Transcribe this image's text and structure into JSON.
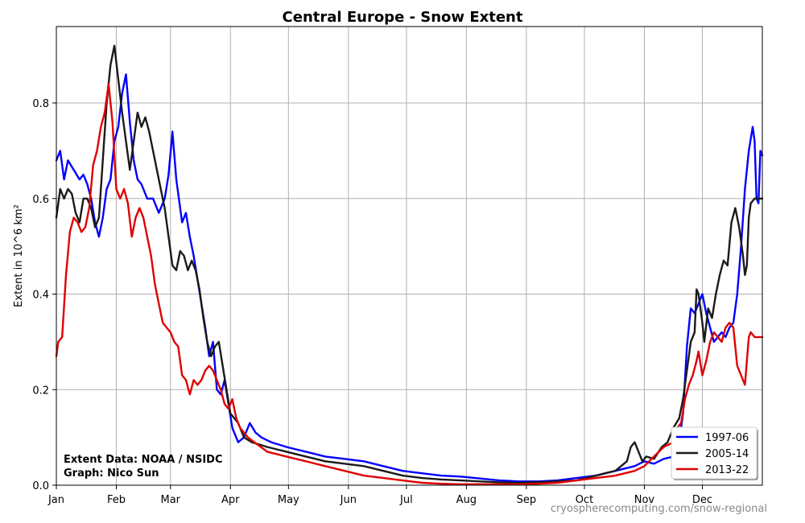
{
  "chart_data": {
    "type": "line",
    "title": "Central Europe - Snow Extent",
    "ylabel": "Extent in 10^6 km²",
    "xlabel": "",
    "x_tick_labels": [
      "Jan",
      "Feb",
      "Mar",
      "Apr",
      "May",
      "Jun",
      "Jul",
      "Aug",
      "Sep",
      "Oct",
      "Nov",
      "Dec"
    ],
    "x_unit": "day of year",
    "x_month_start_days": [
      1,
      32,
      60,
      91,
      121,
      152,
      182,
      213,
      244,
      274,
      305,
      335
    ],
    "xlim": [
      1,
      366
    ],
    "ylim": [
      0,
      0.96
    ],
    "y_ticks": [
      0.0,
      0.2,
      0.4,
      0.6,
      0.8
    ],
    "grid": true,
    "legend_position": "bottom-right",
    "annotation_lines": [
      "Extent Data: NOAA / NSIDC",
      "Graph: Nico Sun"
    ],
    "credit": "cryospherecomputing.com/snow-regional",
    "series": [
      {
        "name": "1997-06",
        "color": "#0000ff",
        "points": [
          [
            1,
            0.68
          ],
          [
            3,
            0.7
          ],
          [
            5,
            0.64
          ],
          [
            7,
            0.68
          ],
          [
            10,
            0.66
          ],
          [
            13,
            0.64
          ],
          [
            15,
            0.65
          ],
          [
            17,
            0.63
          ],
          [
            19,
            0.6
          ],
          [
            21,
            0.55
          ],
          [
            23,
            0.52
          ],
          [
            25,
            0.56
          ],
          [
            27,
            0.62
          ],
          [
            29,
            0.64
          ],
          [
            31,
            0.72
          ],
          [
            33,
            0.75
          ],
          [
            35,
            0.82
          ],
          [
            37,
            0.86
          ],
          [
            39,
            0.76
          ],
          [
            41,
            0.68
          ],
          [
            43,
            0.64
          ],
          [
            45,
            0.63
          ],
          [
            48,
            0.6
          ],
          [
            51,
            0.6
          ],
          [
            54,
            0.57
          ],
          [
            57,
            0.6
          ],
          [
            59,
            0.65
          ],
          [
            61,
            0.74
          ],
          [
            63,
            0.64
          ],
          [
            66,
            0.55
          ],
          [
            68,
            0.57
          ],
          [
            70,
            0.52
          ],
          [
            72,
            0.48
          ],
          [
            74,
            0.43
          ],
          [
            76,
            0.38
          ],
          [
            78,
            0.33
          ],
          [
            80,
            0.27
          ],
          [
            82,
            0.3
          ],
          [
            84,
            0.2
          ],
          [
            86,
            0.19
          ],
          [
            88,
            0.22
          ],
          [
            90,
            0.17
          ],
          [
            92,
            0.12
          ],
          [
            95,
            0.09
          ],
          [
            98,
            0.1
          ],
          [
            101,
            0.13
          ],
          [
            104,
            0.11
          ],
          [
            107,
            0.1
          ],
          [
            112,
            0.09
          ],
          [
            116,
            0.085
          ],
          [
            120,
            0.08
          ],
          [
            125,
            0.075
          ],
          [
            130,
            0.07
          ],
          [
            140,
            0.06
          ],
          [
            150,
            0.055
          ],
          [
            160,
            0.05
          ],
          [
            170,
            0.04
          ],
          [
            180,
            0.03
          ],
          [
            190,
            0.025
          ],
          [
            200,
            0.02
          ],
          [
            210,
            0.018
          ],
          [
            220,
            0.014
          ],
          [
            230,
            0.01
          ],
          [
            240,
            0.008
          ],
          [
            250,
            0.008
          ],
          [
            260,
            0.01
          ],
          [
            270,
            0.015
          ],
          [
            280,
            0.02
          ],
          [
            290,
            0.03
          ],
          [
            300,
            0.04
          ],
          [
            305,
            0.05
          ],
          [
            310,
            0.045
          ],
          [
            315,
            0.055
          ],
          [
            320,
            0.06
          ],
          [
            323,
            0.09
          ],
          [
            325,
            0.15
          ],
          [
            327,
            0.29
          ],
          [
            329,
            0.37
          ],
          [
            331,
            0.36
          ],
          [
            333,
            0.38
          ],
          [
            335,
            0.4
          ],
          [
            337,
            0.36
          ],
          [
            339,
            0.33
          ],
          [
            341,
            0.3
          ],
          [
            343,
            0.31
          ],
          [
            345,
            0.32
          ],
          [
            347,
            0.31
          ],
          [
            349,
            0.33
          ],
          [
            351,
            0.34
          ],
          [
            353,
            0.4
          ],
          [
            355,
            0.5
          ],
          [
            357,
            0.62
          ],
          [
            359,
            0.7
          ],
          [
            361,
            0.75
          ],
          [
            362,
            0.72
          ],
          [
            363,
            0.6
          ],
          [
            364,
            0.59
          ],
          [
            365,
            0.7
          ],
          [
            366,
            0.69
          ]
        ]
      },
      {
        "name": "2005-14",
        "color": "#1a1a1a",
        "points": [
          [
            1,
            0.56
          ],
          [
            3,
            0.62
          ],
          [
            5,
            0.6
          ],
          [
            7,
            0.62
          ],
          [
            9,
            0.61
          ],
          [
            11,
            0.57
          ],
          [
            13,
            0.55
          ],
          [
            15,
            0.6
          ],
          [
            17,
            0.6
          ],
          [
            19,
            0.58
          ],
          [
            21,
            0.54
          ],
          [
            23,
            0.56
          ],
          [
            25,
            0.68
          ],
          [
            27,
            0.8
          ],
          [
            29,
            0.88
          ],
          [
            31,
            0.92
          ],
          [
            33,
            0.85
          ],
          [
            35,
            0.78
          ],
          [
            37,
            0.72
          ],
          [
            39,
            0.66
          ],
          [
            41,
            0.72
          ],
          [
            43,
            0.78
          ],
          [
            45,
            0.75
          ],
          [
            47,
            0.77
          ],
          [
            49,
            0.74
          ],
          [
            51,
            0.7
          ],
          [
            53,
            0.66
          ],
          [
            55,
            0.62
          ],
          [
            57,
            0.58
          ],
          [
            59,
            0.52
          ],
          [
            61,
            0.46
          ],
          [
            63,
            0.45
          ],
          [
            65,
            0.49
          ],
          [
            67,
            0.48
          ],
          [
            69,
            0.45
          ],
          [
            71,
            0.47
          ],
          [
            73,
            0.45
          ],
          [
            75,
            0.41
          ],
          [
            77,
            0.35
          ],
          [
            79,
            0.3
          ],
          [
            81,
            0.27
          ],
          [
            83,
            0.29
          ],
          [
            85,
            0.3
          ],
          [
            87,
            0.25
          ],
          [
            89,
            0.2
          ],
          [
            91,
            0.15
          ],
          [
            93,
            0.14
          ],
          [
            95,
            0.13
          ],
          [
            98,
            0.1
          ],
          [
            102,
            0.09
          ],
          [
            106,
            0.085
          ],
          [
            110,
            0.08
          ],
          [
            115,
            0.075
          ],
          [
            120,
            0.07
          ],
          [
            130,
            0.06
          ],
          [
            140,
            0.05
          ],
          [
            150,
            0.045
          ],
          [
            160,
            0.04
          ],
          [
            170,
            0.03
          ],
          [
            180,
            0.02
          ],
          [
            190,
            0.015
          ],
          [
            200,
            0.012
          ],
          [
            210,
            0.01
          ],
          [
            220,
            0.008
          ],
          [
            230,
            0.006
          ],
          [
            240,
            0.005
          ],
          [
            250,
            0.006
          ],
          [
            260,
            0.008
          ],
          [
            270,
            0.01
          ],
          [
            280,
            0.02
          ],
          [
            290,
            0.03
          ],
          [
            296,
            0.05
          ],
          [
            298,
            0.08
          ],
          [
            300,
            0.09
          ],
          [
            302,
            0.07
          ],
          [
            304,
            0.05
          ],
          [
            306,
            0.06
          ],
          [
            310,
            0.055
          ],
          [
            314,
            0.08
          ],
          [
            317,
            0.09
          ],
          [
            320,
            0.12
          ],
          [
            323,
            0.14
          ],
          [
            325,
            0.18
          ],
          [
            327,
            0.24
          ],
          [
            329,
            0.3
          ],
          [
            331,
            0.32
          ],
          [
            332,
            0.41
          ],
          [
            333,
            0.4
          ],
          [
            335,
            0.34
          ],
          [
            336,
            0.3
          ],
          [
            338,
            0.37
          ],
          [
            340,
            0.35
          ],
          [
            342,
            0.4
          ],
          [
            344,
            0.44
          ],
          [
            346,
            0.47
          ],
          [
            348,
            0.46
          ],
          [
            350,
            0.55
          ],
          [
            352,
            0.58
          ],
          [
            354,
            0.54
          ],
          [
            356,
            0.48
          ],
          [
            357,
            0.44
          ],
          [
            358,
            0.46
          ],
          [
            359,
            0.56
          ],
          [
            360,
            0.59
          ],
          [
            362,
            0.6
          ],
          [
            366,
            0.6
          ]
        ]
      },
      {
        "name": "2013-22",
        "color": "#e00000",
        "points": [
          [
            1,
            0.27
          ],
          [
            2,
            0.3
          ],
          [
            4,
            0.31
          ],
          [
            6,
            0.44
          ],
          [
            8,
            0.53
          ],
          [
            10,
            0.56
          ],
          [
            12,
            0.55
          ],
          [
            14,
            0.53
          ],
          [
            16,
            0.54
          ],
          [
            18,
            0.58
          ],
          [
            20,
            0.67
          ],
          [
            22,
            0.7
          ],
          [
            24,
            0.75
          ],
          [
            26,
            0.78
          ],
          [
            28,
            0.84
          ],
          [
            30,
            0.76
          ],
          [
            32,
            0.62
          ],
          [
            34,
            0.6
          ],
          [
            36,
            0.62
          ],
          [
            38,
            0.59
          ],
          [
            40,
            0.52
          ],
          [
            42,
            0.56
          ],
          [
            44,
            0.58
          ],
          [
            46,
            0.56
          ],
          [
            48,
            0.52
          ],
          [
            50,
            0.48
          ],
          [
            52,
            0.42
          ],
          [
            54,
            0.38
          ],
          [
            56,
            0.34
          ],
          [
            58,
            0.33
          ],
          [
            60,
            0.32
          ],
          [
            62,
            0.3
          ],
          [
            64,
            0.29
          ],
          [
            66,
            0.23
          ],
          [
            68,
            0.22
          ],
          [
            70,
            0.19
          ],
          [
            72,
            0.22
          ],
          [
            74,
            0.21
          ],
          [
            76,
            0.22
          ],
          [
            78,
            0.24
          ],
          [
            80,
            0.25
          ],
          [
            82,
            0.24
          ],
          [
            84,
            0.22
          ],
          [
            86,
            0.2
          ],
          [
            88,
            0.17
          ],
          [
            90,
            0.16
          ],
          [
            92,
            0.18
          ],
          [
            94,
            0.14
          ],
          [
            96,
            0.12
          ],
          [
            100,
            0.1
          ],
          [
            105,
            0.085
          ],
          [
            110,
            0.07
          ],
          [
            115,
            0.065
          ],
          [
            120,
            0.06
          ],
          [
            130,
            0.05
          ],
          [
            140,
            0.04
          ],
          [
            150,
            0.03
          ],
          [
            160,
            0.02
          ],
          [
            170,
            0.015
          ],
          [
            180,
            0.01
          ],
          [
            190,
            0.005
          ],
          [
            200,
            0.003
          ],
          [
            210,
            0.002
          ],
          [
            220,
            0.002
          ],
          [
            230,
            0.002
          ],
          [
            240,
            0.002
          ],
          [
            250,
            0.003
          ],
          [
            260,
            0.005
          ],
          [
            270,
            0.01
          ],
          [
            280,
            0.015
          ],
          [
            290,
            0.02
          ],
          [
            300,
            0.03
          ],
          [
            305,
            0.04
          ],
          [
            310,
            0.06
          ],
          [
            315,
            0.08
          ],
          [
            320,
            0.09
          ],
          [
            322,
            0.12
          ],
          [
            324,
            0.13
          ],
          [
            326,
            0.18
          ],
          [
            328,
            0.21
          ],
          [
            330,
            0.23
          ],
          [
            332,
            0.26
          ],
          [
            333,
            0.28
          ],
          [
            335,
            0.23
          ],
          [
            337,
            0.26
          ],
          [
            339,
            0.3
          ],
          [
            341,
            0.32
          ],
          [
            343,
            0.31
          ],
          [
            345,
            0.3
          ],
          [
            347,
            0.33
          ],
          [
            349,
            0.34
          ],
          [
            351,
            0.33
          ],
          [
            353,
            0.25
          ],
          [
            355,
            0.23
          ],
          [
            357,
            0.21
          ],
          [
            359,
            0.31
          ],
          [
            360,
            0.32
          ],
          [
            362,
            0.31
          ],
          [
            366,
            0.31
          ]
        ]
      }
    ]
  }
}
